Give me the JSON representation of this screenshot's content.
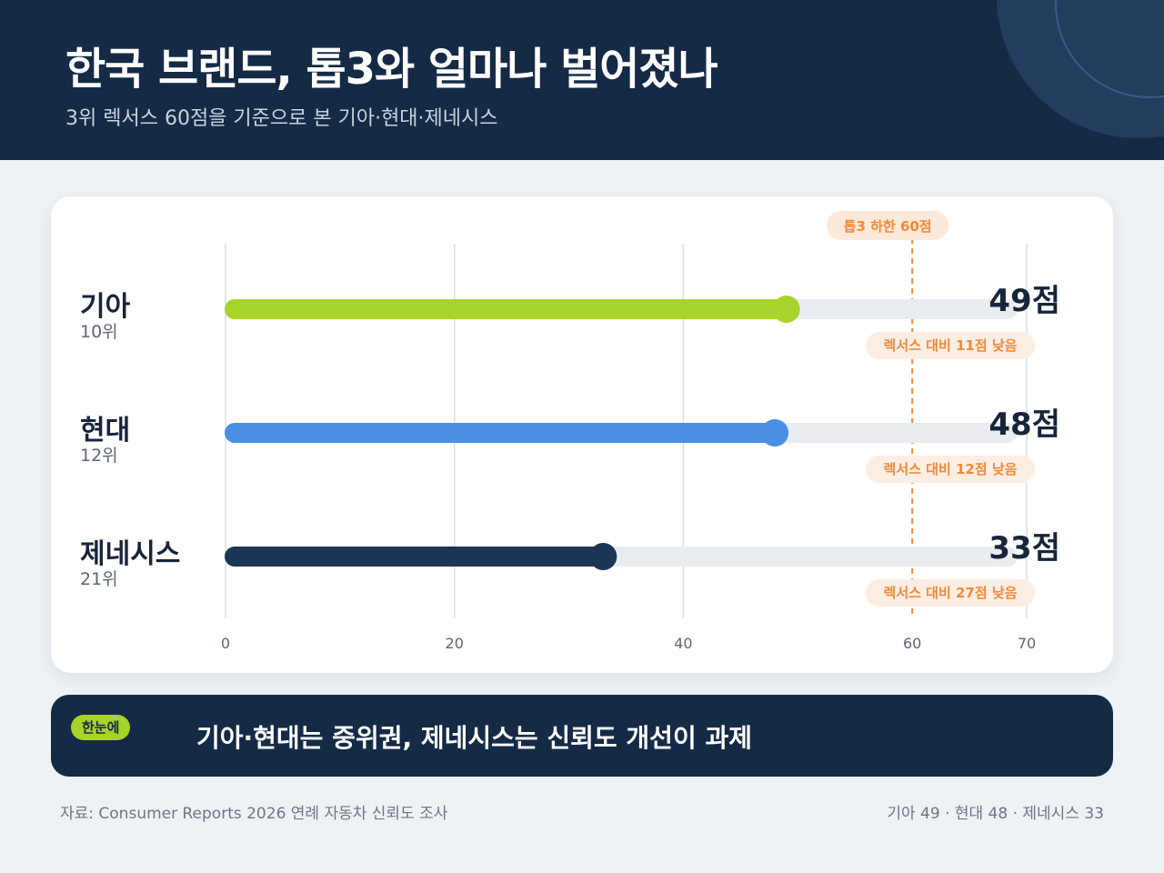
{
  "header": {
    "title": "한국 브랜드, 톱3와 얼마나 벌어졌나",
    "subtitle": "3위 렉서스 60점을 기준으로 본 기아·현대·제네시스"
  },
  "chart_data": {
    "type": "bar",
    "orientation": "horizontal",
    "categories": [
      "기아",
      "현대",
      "제네시스"
    ],
    "ranks": [
      "10위",
      "12위",
      "21위"
    ],
    "values": [
      49,
      48,
      33
    ],
    "value_labels": [
      "49점",
      "48점",
      "33점"
    ],
    "gap_labels": [
      "렉서스 대비 11점 낮음",
      "렉서스 대비 12점 낮음",
      "렉서스 대비 27점 낮음"
    ],
    "colors": [
      "#a8d32a",
      "#4a8fe3",
      "#1d3656"
    ],
    "xlim": [
      0,
      70
    ],
    "xticks": [
      "0",
      "20",
      "40",
      "60",
      "70"
    ],
    "tick_values": [
      0,
      20,
      40,
      60,
      70
    ],
    "reference_value": 60,
    "reference_label": "톱3 하한 60점",
    "reference_color": "#f0893a",
    "grid": true
  },
  "summary": {
    "badge": "한눈에",
    "text": "기아·현대는 중위권, 제네시스는 신뢰도 개선이 과제"
  },
  "footer": {
    "source": "자료: Consumer Reports 2026 연례 자동차 신뢰도 조사",
    "recap": "기아 49 · 현대 48 · 제네시스 33"
  }
}
